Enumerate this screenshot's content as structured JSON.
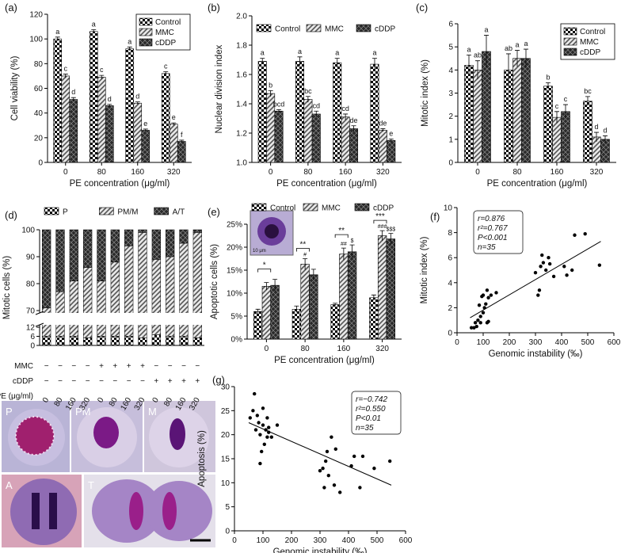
{
  "chart_data": [
    {
      "type": "bar",
      "panel": "(a)",
      "ylabel": "Cell viability (%)",
      "xlabel": "PE concentration (μg/ml)",
      "categories": [
        "0",
        "80",
        "160",
        "320"
      ],
      "ylim": [
        0,
        120
      ],
      "yticks": [
        0,
        20,
        40,
        60,
        80,
        100,
        120
      ],
      "legend": "upper right",
      "series": [
        {
          "name": "Control",
          "color": "#000000",
          "pattern": "checker",
          "values": [
            100,
            106,
            92,
            72
          ],
          "errors": [
            1.5,
            1.5,
            1.5,
            1.5
          ],
          "letters": [
            "a",
            "a",
            "a",
            "c"
          ]
        },
        {
          "name": "MMC",
          "color": "#555555",
          "pattern": "hatch",
          "values": [
            70,
            69,
            48,
            31
          ],
          "errors": [
            1.5,
            1.5,
            1,
            1
          ],
          "letters": [
            "c",
            "c",
            "d",
            "e"
          ]
        },
        {
          "name": "cDDP",
          "color": "#2a2a2a",
          "pattern": "dark",
          "values": [
            51,
            46,
            26,
            17
          ],
          "errors": [
            1.5,
            1,
            1,
            1
          ],
          "letters": [
            "d",
            "d",
            "e",
            "f"
          ]
        }
      ]
    },
    {
      "type": "bar",
      "panel": "(b)",
      "ylabel": "Nuclear division index",
      "xlabel": "PE concentration (μg/ml)",
      "categories": [
        "0",
        "80",
        "160",
        "320"
      ],
      "ylim": [
        1,
        2
      ],
      "yticks": [
        {
          "value": 1,
          "label": "1.0"
        },
        1.2,
        1.4,
        1.6,
        1.8,
        {
          "value": 2,
          "label": "2.0"
        }
      ],
      "legend": "top",
      "series": [
        {
          "name": "Control",
          "color": "#000000",
          "pattern": "checker",
          "values": [
            1.69,
            1.69,
            1.68,
            1.67
          ],
          "errors": [
            0.02,
            0.03,
            0.03,
            0.04
          ],
          "letters": [
            "a",
            "a",
            "a",
            "a"
          ]
        },
        {
          "name": "MMC",
          "color": "#555555",
          "pattern": "hatch",
          "values": [
            1.47,
            1.43,
            1.31,
            1.22
          ],
          "errors": [
            0.02,
            0.02,
            0.02,
            0.01
          ],
          "letters": [
            "b",
            "bc",
            "cd",
            "de"
          ]
        },
        {
          "name": "cDDP",
          "color": "#2a2a2a",
          "pattern": "dark",
          "values": [
            1.35,
            1.33,
            1.23,
            1.15
          ],
          "errors": [
            0.01,
            0.02,
            0.02,
            0.01
          ],
          "letters": [
            "bcd",
            "cd",
            "de",
            "e"
          ]
        }
      ]
    },
    {
      "type": "bar",
      "panel": "(c)",
      "ylabel": "Mitotic index (%)",
      "xlabel": "PE concentration (μg/ml)",
      "categories": [
        "0",
        "80",
        "160",
        "320"
      ],
      "ylim": [
        0,
        6
      ],
      "yticks": [
        0,
        1,
        2,
        3,
        4,
        5,
        6
      ],
      "legend": "upper right",
      "series": [
        {
          "name": "Control",
          "color": "#000000",
          "pattern": "checker",
          "values": [
            4.2,
            4.0,
            3.3,
            2.65
          ],
          "errors": [
            0.45,
            0.7,
            0.15,
            0.2
          ],
          "letters": [
            "a",
            "ab",
            "b",
            "bc"
          ]
        },
        {
          "name": "MMC",
          "color": "#555555",
          "pattern": "hatch",
          "values": [
            4.0,
            4.5,
            1.95,
            1.1
          ],
          "errors": [
            0.4,
            0.35,
            0.25,
            0.2
          ],
          "letters": [
            "ab",
            "a",
            "c",
            "d"
          ]
        },
        {
          "name": "cDDP",
          "color": "#2a2a2a",
          "pattern": "dark",
          "values": [
            4.8,
            4.5,
            2.2,
            1.0
          ],
          "errors": [
            0.7,
            0.4,
            0.3,
            0.15
          ],
          "letters": [
            "a",
            "a",
            "c",
            "d"
          ]
        }
      ]
    },
    {
      "type": "stacked_bar",
      "panel": "(d)",
      "ylabel": "Mitotic cells (%)",
      "ylim": [
        0,
        100
      ],
      "axis_break": [
        12,
        70
      ],
      "yticks": [
        0,
        6,
        12,
        70,
        80,
        90,
        100
      ],
      "legend": "top",
      "series": [
        {
          "name": "P",
          "color": "#000000",
          "pattern": "checker",
          "values": [
            6,
            6,
            6,
            5,
            6,
            6,
            6,
            5,
            7,
            6,
            6,
            5
          ]
        },
        {
          "name": "PM/M",
          "color": "#555555",
          "pattern": "hatch",
          "values": [
            65,
            71,
            75,
            81,
            75,
            82,
            88,
            94,
            82,
            84,
            89,
            94
          ]
        },
        {
          "name": "A/T",
          "color": "#2a2a2a",
          "pattern": "dark",
          "values": [
            29,
            23,
            19,
            14,
            19,
            12,
            6,
            1,
            11,
            10,
            5,
            1
          ]
        }
      ],
      "conditions": [
        {
          "name": "MMC",
          "values": [
            "−",
            "−",
            "−",
            "−",
            "+",
            "+",
            "+",
            "+",
            "−",
            "−",
            "−",
            "−"
          ]
        },
        {
          "name": "cDDP",
          "values": [
            "−",
            "−",
            "−",
            "−",
            "−",
            "−",
            "−",
            "−",
            "+",
            "+",
            "+",
            "+"
          ]
        },
        {
          "name": "PE (μg/ml)",
          "values": [
            "0",
            "80",
            "160",
            "320",
            "0",
            "80",
            "160",
            "320",
            "0",
            "80",
            "160",
            "320"
          ]
        }
      ]
    },
    {
      "type": "bar",
      "panel": "(e)",
      "ylabel": "Apoptotic cells (%)",
      "xlabel": "PE concentration (μg/ml)",
      "categories": [
        "0",
        "80",
        "160",
        "320"
      ],
      "ylim": [
        0,
        25
      ],
      "yticks": [
        {
          "value": 0,
          "label": "0%"
        },
        {
          "value": 5,
          "label": "5%"
        },
        {
          "value": 10,
          "label": "10%"
        },
        {
          "value": 15,
          "label": "15%"
        },
        {
          "value": 20,
          "label": "20%"
        },
        {
          "value": 25,
          "label": "25%"
        }
      ],
      "legend": "top",
      "significance": [
        "*",
        "**",
        "**",
        "***"
      ],
      "inset_label": "10 μm",
      "series": [
        {
          "name": "Control",
          "color": "#000000",
          "pattern": "checker",
          "values": [
            6,
            6.5,
            7.5,
            9
          ],
          "errors": [
            0.5,
            0.7,
            0.3,
            0.6
          ]
        },
        {
          "name": "MMC",
          "color": "#555555",
          "pattern": "hatch",
          "values": [
            11.5,
            16.3,
            18.5,
            22.5
          ],
          "errors": [
            0.8,
            1.2,
            1.3,
            1.1
          ],
          "marks": [
            null,
            "#",
            "##",
            "###"
          ]
        },
        {
          "name": "cDDP",
          "color": "#2a2a2a",
          "pattern": "dark",
          "values": [
            11.7,
            14,
            19,
            21.8
          ],
          "errors": [
            1.3,
            1.2,
            1.5,
            1.2
          ],
          "marks": [
            null,
            null,
            "$",
            "$$$"
          ]
        }
      ]
    },
    {
      "type": "scatter",
      "panel": "(f)",
      "xlabel": "Genomic instability (‰)",
      "ylabel": "Mitotic index (%)",
      "color": "#000000",
      "x": [
        55,
        65,
        70,
        75,
        80,
        85,
        90,
        90,
        95,
        100,
        100,
        105,
        110,
        115,
        115,
        120,
        130,
        150,
        120,
        300,
        310,
        315,
        320,
        325,
        330,
        340,
        350,
        355,
        370,
        410,
        420,
        440,
        450,
        490,
        545
      ],
      "y": [
        0.4,
        0.4,
        0.8,
        0.5,
        1.0,
        2.2,
        0.8,
        1.3,
        2.9,
        1.6,
        3.0,
        2.0,
        2.3,
        3.4,
        0.8,
        0.9,
        3.0,
        3.2,
        2.8,
        4.8,
        3.0,
        3.4,
        5.3,
        6.2,
        5.6,
        5.0,
        6.0,
        5.5,
        4.5,
        5.3,
        4.6,
        5.0,
        7.8,
        7.9,
        5.4
      ],
      "xlim": [
        0,
        600
      ],
      "xticks": [
        0,
        100,
        200,
        300,
        400,
        500,
        600
      ],
      "ylim": [
        0,
        10
      ],
      "yticks": [
        0,
        2,
        4,
        6,
        8,
        10
      ],
      "fit": {
        "x": [
          50,
          550
        ],
        "y": [
          1.2,
          7.3
        ]
      },
      "stats": [
        "r=0.876",
        "r²=0.767",
        "P<0.001",
        "n=35"
      ]
    },
    {
      "type": "scatter",
      "panel": "(g)",
      "xlabel": "Genomic instability (‰)",
      "ylabel": "Apoptosis (%)",
      "color": "#000000",
      "x": [
        55,
        65,
        70,
        75,
        80,
        85,
        90,
        90,
        95,
        100,
        100,
        105,
        110,
        115,
        115,
        120,
        130,
        150,
        120,
        300,
        310,
        315,
        320,
        325,
        330,
        340,
        350,
        355,
        370,
        410,
        420,
        440,
        450,
        490,
        545
      ],
      "y": [
        23.5,
        25,
        28.5,
        21,
        24,
        22.5,
        20,
        14,
        16.5,
        22,
        25.5,
        18,
        21,
        23.5,
        19.5,
        21.5,
        19.5,
        22,
        20.5,
        12.5,
        13,
        9,
        14.5,
        16.5,
        11.5,
        19.5,
        9.5,
        17,
        8,
        13.5,
        15.5,
        9,
        15.5,
        13,
        14.5
      ],
      "xlim": [
        0,
        600
      ],
      "xticks": [
        0,
        100,
        200,
        300,
        400,
        500,
        600
      ],
      "ylim": [
        0,
        30
      ],
      "yticks": [
        0,
        5,
        10,
        15,
        20,
        25,
        30
      ],
      "fit": {
        "x": [
          50,
          550
        ],
        "y": [
          22.5,
          9.5
        ]
      },
      "stats": [
        "r=−0.742",
        "r²=0.550",
        "P<0.01",
        "n=35"
      ]
    }
  ],
  "micrographs": {
    "labels": [
      "P",
      "PM",
      "M",
      "A",
      "T"
    ]
  }
}
